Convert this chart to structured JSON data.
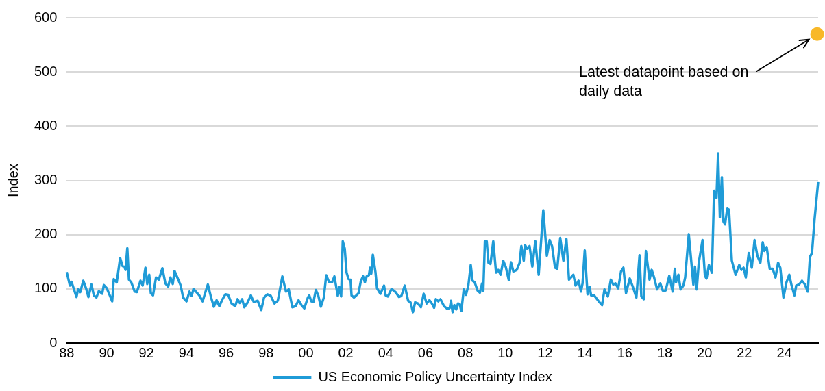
{
  "chart_data": {
    "type": "line",
    "ylabel": "Index",
    "xlim": [
      1988,
      2025.7
    ],
    "ylim": [
      0,
      600
    ],
    "xticks": [
      {
        "value": 1988,
        "label": "88"
      },
      {
        "value": 1990,
        "label": "90"
      },
      {
        "value": 1992,
        "label": "92"
      },
      {
        "value": 1994,
        "label": "94"
      },
      {
        "value": 1996,
        "label": "96"
      },
      {
        "value": 1998,
        "label": "98"
      },
      {
        "value": 2000,
        "label": "00"
      },
      {
        "value": 2002,
        "label": "02"
      },
      {
        "value": 2004,
        "label": "04"
      },
      {
        "value": 2006,
        "label": "06"
      },
      {
        "value": 2008,
        "label": "08"
      },
      {
        "value": 2010,
        "label": "10"
      },
      {
        "value": 2012,
        "label": "12"
      },
      {
        "value": 2014,
        "label": "14"
      },
      {
        "value": 2016,
        "label": "16"
      },
      {
        "value": 2018,
        "label": "18"
      },
      {
        "value": 2020,
        "label": "20"
      },
      {
        "value": 2022,
        "label": "22"
      },
      {
        "value": 2024,
        "label": "24"
      }
    ],
    "yticks": [
      0,
      100,
      200,
      300,
      400,
      500,
      600
    ],
    "grid": "y",
    "legend": "bottom",
    "annotations": [
      "Latest datapoint based on daily data"
    ],
    "series": [
      {
        "name": "US Economic Policy Uncertainty Index",
        "color": "#1f9bd7",
        "x": [
          1988.0,
          1988.16,
          1988.24,
          1988.49,
          1988.57,
          1988.68,
          1988.83,
          1988.97,
          1989.09,
          1989.24,
          1989.36,
          1989.49,
          1989.61,
          1989.78,
          1989.86,
          1990.01,
          1990.16,
          1990.28,
          1990.36,
          1990.51,
          1990.68,
          1990.8,
          1990.89,
          1990.95,
          1991.04,
          1991.12,
          1991.24,
          1991.41,
          1991.52,
          1991.7,
          1991.81,
          1991.95,
          1992.04,
          1992.14,
          1992.22,
          1992.33,
          1992.48,
          1992.62,
          1992.8,
          1992.95,
          1993.09,
          1993.2,
          1993.32,
          1993.41,
          1993.55,
          1993.72,
          1993.84,
          1994.01,
          1994.16,
          1994.27,
          1994.36,
          1994.53,
          1994.65,
          1994.82,
          1994.94,
          1995.08,
          1995.23,
          1995.38,
          1995.52,
          1995.66,
          1995.79,
          1995.96,
          1996.1,
          1996.27,
          1996.45,
          1996.57,
          1996.68,
          1996.8,
          1996.91,
          1997.06,
          1997.24,
          1997.38,
          1997.58,
          1997.76,
          1997.9,
          1998.07,
          1998.24,
          1998.42,
          1998.59,
          1998.82,
          1999.0,
          1999.14,
          1999.32,
          1999.48,
          1999.63,
          1999.78,
          1999.92,
          2000.1,
          2000.17,
          2000.27,
          2000.38,
          2000.5,
          2000.62,
          2000.75,
          2000.9,
          2001.02,
          2001.17,
          2001.31,
          2001.43,
          2001.6,
          2001.68,
          2001.77,
          2001.85,
          2001.95,
          2002.04,
          2002.14,
          2002.24,
          2002.29,
          2002.41,
          2002.53,
          2002.64,
          2002.76,
          2002.87,
          2002.96,
          2003.05,
          2003.16,
          2003.22,
          2003.28,
          2003.36,
          2003.49,
          2003.57,
          2003.74,
          2003.92,
          2004.0,
          2004.11,
          2004.3,
          2004.5,
          2004.67,
          2004.79,
          2004.96,
          2005.13,
          2005.25,
          2005.37,
          2005.48,
          2005.62,
          2005.77,
          2005.91,
          2006.06,
          2006.2,
          2006.32,
          2006.43,
          2006.52,
          2006.64,
          2006.75,
          2006.93,
          2007.1,
          2007.22,
          2007.28,
          2007.36,
          2007.45,
          2007.54,
          2007.63,
          2007.71,
          2007.8,
          2007.92,
          2008.03,
          2008.15,
          2008.27,
          2008.36,
          2008.47,
          2008.61,
          2008.73,
          2008.84,
          2008.9,
          2008.98,
          2009.07,
          2009.16,
          2009.26,
          2009.4,
          2009.54,
          2009.65,
          2009.77,
          2009.9,
          2010.03,
          2010.18,
          2010.29,
          2010.41,
          2010.58,
          2010.72,
          2010.81,
          2010.93,
          2010.99,
          2011.1,
          2011.22,
          2011.36,
          2011.51,
          2011.68,
          2011.91,
          2012.09,
          2012.23,
          2012.35,
          2012.5,
          2012.61,
          2012.76,
          2012.92,
          2013.07,
          2013.2,
          2013.42,
          2013.53,
          2013.68,
          2013.8,
          2013.88,
          2013.99,
          2014.13,
          2014.23,
          2014.31,
          2014.46,
          2014.69,
          2014.86,
          2014.98,
          2015.15,
          2015.3,
          2015.42,
          2015.53,
          2015.67,
          2015.81,
          2015.93,
          2016.06,
          2016.25,
          2016.43,
          2016.58,
          2016.74,
          2016.83,
          2016.95,
          2017.06,
          2017.24,
          2017.35,
          2017.47,
          2017.62,
          2017.78,
          2017.9,
          2018.05,
          2018.23,
          2018.4,
          2018.51,
          2018.57,
          2018.69,
          2018.8,
          2018.94,
          2019.03,
          2019.21,
          2019.44,
          2019.52,
          2019.61,
          2019.71,
          2019.9,
          2020.02,
          2020.1,
          2020.22,
          2020.37,
          2020.48,
          2020.6,
          2020.68,
          2020.77,
          2020.87,
          2020.95,
          2021.03,
          2021.14,
          2021.23,
          2021.37,
          2021.56,
          2021.74,
          2021.85,
          2021.96,
          2022.07,
          2022.22,
          2022.37,
          2022.51,
          2022.65,
          2022.8,
          2022.92,
          2023.0,
          2023.12,
          2023.27,
          2023.42,
          2023.56,
          2023.69,
          2023.8,
          2023.96,
          2024.11,
          2024.25,
          2024.37,
          2024.51,
          2024.6,
          2024.74,
          2024.89,
          2025.04,
          2025.18,
          2025.29,
          2025.39,
          2025.52,
          2025.7
        ],
        "values": [
          131,
          106,
          113,
          85,
          100,
          94,
          115,
          101,
          85,
          108,
          88,
          84,
          96,
          91,
          107,
          101,
          88,
          77,
          118,
          112,
          157,
          142,
          141,
          135,
          175,
          117,
          112,
          95,
          94,
          115,
          106,
          139,
          109,
          126,
          92,
          88,
          121,
          117,
          138,
          110,
          104,
          121,
          109,
          133,
          121,
          106,
          84,
          77,
          95,
          87,
          100,
          93,
          88,
          77,
          92,
          108,
          86,
          67,
          79,
          68,
          79,
          90,
          89,
          73,
          68,
          81,
          74,
          81,
          66,
          74,
          88,
          76,
          78,
          61,
          84,
          90,
          87,
          73,
          78,
          123,
          95,
          99,
          66,
          68,
          79,
          70,
          64,
          84,
          88,
          77,
          76,
          98,
          88,
          67,
          84,
          125,
          112,
          112,
          123,
          87,
          103,
          86,
          188,
          174,
          130,
          118,
          117,
          88,
          84,
          88,
          92,
          115,
          123,
          112,
          123,
          125,
          139,
          128,
          163,
          131,
          101,
          91,
          106,
          88,
          86,
          100,
          94,
          85,
          87,
          106,
          78,
          75,
          57,
          75,
          73,
          66,
          91,
          73,
          79,
          73,
          65,
          81,
          77,
          81,
          68,
          63,
          65,
          78,
          57,
          70,
          62,
          73,
          72,
          59,
          99,
          89,
          106,
          144,
          115,
          112,
          97,
          93,
          110,
          96,
          188,
          188,
          148,
          146,
          188,
          130,
          135,
          126,
          152,
          140,
          116,
          149,
          132,
          135,
          148,
          179,
          152,
          181,
          174,
          179,
          141,
          188,
          126,
          245,
          161,
          190,
          179,
          139,
          137,
          194,
          152,
          192,
          117,
          126,
          106,
          115,
          95,
          110,
          171,
          90,
          104,
          88,
          88,
          77,
          70,
          99,
          86,
          117,
          108,
          110,
          101,
          132,
          139,
          92,
          119,
          101,
          84,
          162,
          86,
          81,
          170,
          117,
          135,
          121,
          99,
          110,
          97,
          97,
          124,
          95,
          137,
          112,
          126,
          99,
          106,
          121,
          201,
          108,
          141,
          99,
          148,
          190,
          124,
          119,
          144,
          130,
          281,
          268,
          350,
          232,
          306,
          224,
          219,
          248,
          246,
          152,
          126,
          144,
          135,
          139,
          121,
          166,
          139,
          190,
          161,
          148,
          186,
          170,
          177,
          137,
          137,
          121,
          148,
          139,
          84,
          112,
          126,
          106,
          88,
          106,
          108,
          115,
          108,
          95,
          159,
          166,
          228,
          297
        ]
      },
      {
        "color": "#f8b828",
        "type": "scatter",
        "x": [
          2025.65
        ],
        "values": [
          570
        ]
      }
    ]
  }
}
